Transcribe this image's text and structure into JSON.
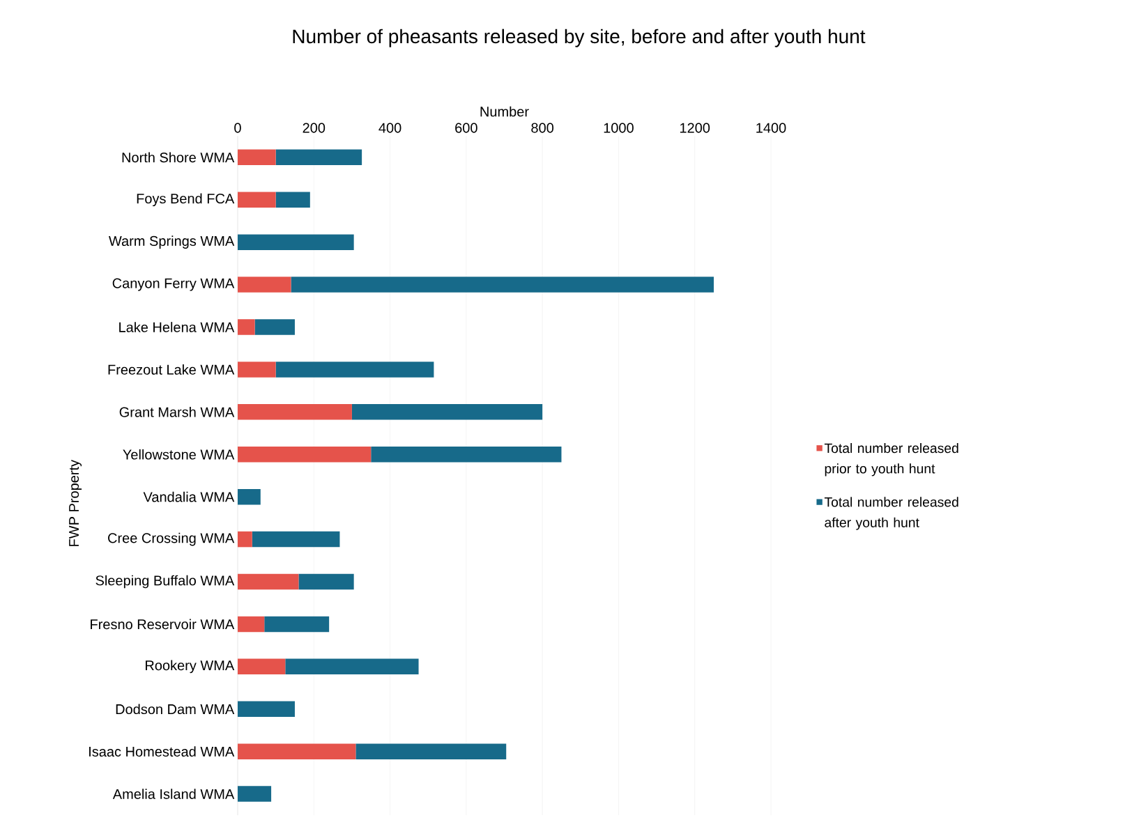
{
  "chart_data": {
    "type": "bar",
    "orientation": "horizontal",
    "stacked": true,
    "title": "Number of pheasants released by site, before and after youth hunt",
    "xlabel": "Number",
    "ylabel": "FWP Property",
    "categories": [
      "North Shore WMA",
      "Foys Bend FCA",
      "Warm Springs WMA",
      "Canyon Ferry WMA",
      "Lake Helena WMA",
      "Freezout Lake WMA",
      "Grant Marsh WMA",
      "Yellowstone WMA",
      "Vandalia WMA",
      "Cree Crossing WMA",
      "Sleeping Buffalo WMA",
      "Fresno Reservoir WMA",
      "Rookery WMA",
      "Dodson Dam WMA",
      "Isaac Homestead WMA",
      "Amelia Island WMA"
    ],
    "series": [
      {
        "name": "Total number released prior to youth hunt",
        "color": "#e5534b",
        "values": [
          100,
          100,
          0,
          140,
          45,
          100,
          300,
          350,
          0,
          38,
          160,
          70,
          125,
          0,
          310,
          0
        ]
      },
      {
        "name": "Total number released after youth hunt",
        "color": "#176a8a",
        "values": [
          226,
          90,
          305,
          1110,
          105,
          415,
          500,
          500,
          60,
          230,
          145,
          170,
          350,
          150,
          395,
          88
        ]
      }
    ],
    "xlim": [
      0,
      1400
    ],
    "xticks": [
      0,
      200,
      400,
      600,
      800,
      1000,
      1200,
      1400
    ],
    "grid": "x",
    "legend": "right"
  }
}
